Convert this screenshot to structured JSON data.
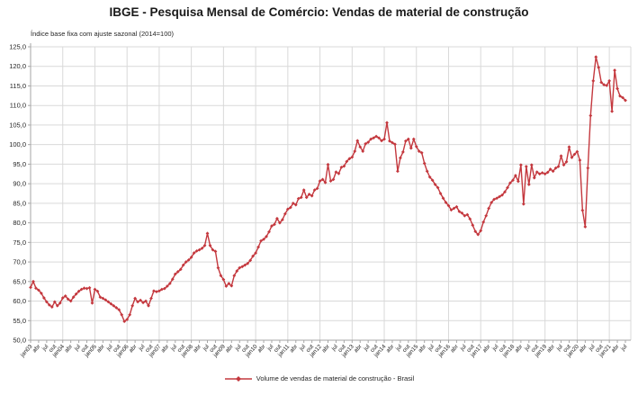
{
  "header": {
    "title": "IBGE - Pesquisa Mensal de Comércio: Vendas de material de construção"
  },
  "chart_data": {
    "type": "line",
    "title": "IBGE - Pesquisa Mensal de Comércio: Vendas de material de construção",
    "subtitle": "Índice base fixa com ajuste sazonal (2014=100)",
    "xlabel": "",
    "ylabel": "",
    "x_start": "jan/2003",
    "x_end": "jul/2021",
    "frequency": "monthly",
    "ylim": [
      50,
      125
    ],
    "y_step": 5,
    "grid": {
      "horizontal": true,
      "vertical_every_months": 12,
      "x_tick_every_months": 3
    },
    "legend_position": "bottom-center",
    "colors": {
      "series": "#c4383e",
      "gridline": "#d9d9d9",
      "axis": "#a6a6a6",
      "text": "#262626"
    },
    "y_tick_labels": [
      "125,0",
      "120,0",
      "115,0",
      "110,0",
      "105,0",
      "100,0",
      "95,0",
      "90,0",
      "85,0",
      "80,0",
      "75,0",
      "70,0",
      "65,0",
      "60,0",
      "55,0",
      "50,0"
    ],
    "x_tick_labels": [
      "jan03",
      "abr",
      "jul",
      "out",
      "jan04",
      "abr",
      "jul",
      "out",
      "jan05",
      "abr",
      "jul",
      "out",
      "jan06",
      "abr",
      "jul",
      "out",
      "jan07",
      "abr",
      "jul",
      "out",
      "jan08",
      "abr",
      "jul",
      "out",
      "jan09",
      "abr",
      "jul",
      "out",
      "jan10",
      "abr",
      "jul",
      "out",
      "jan11",
      "abr",
      "jul",
      "out",
      "jan12",
      "abr",
      "jul",
      "out",
      "jan13",
      "abr",
      "jul",
      "out",
      "jan14",
      "abr",
      "jul",
      "out",
      "jan15",
      "abr",
      "jul",
      "out",
      "jan16",
      "abr",
      "jul",
      "out",
      "jan17",
      "abr",
      "jul",
      "out",
      "jan18",
      "abr",
      "jul",
      "out",
      "jan19",
      "abr",
      "jul",
      "out",
      "jan20",
      "abr",
      "jul",
      "out",
      "jan21",
      "abr",
      "jul"
    ],
    "series": [
      {
        "name": "Volume de vendas de material de construção - Brasil",
        "color": "#c4383e",
        "marker": "diamond",
        "values": [
          63.5,
          65.0,
          63.3,
          62.8,
          62.0,
          60.8,
          59.8,
          59.0,
          58.5,
          59.8,
          58.8,
          59.5,
          60.8,
          61.3,
          60.5,
          60.0,
          61.0,
          61.8,
          62.5,
          63.0,
          63.3,
          63.2,
          63.4,
          59.5,
          63.0,
          62.5,
          61.0,
          60.7,
          60.3,
          59.8,
          59.3,
          58.8,
          58.3,
          57.8,
          56.5,
          54.8,
          55.3,
          56.5,
          58.8,
          60.7,
          59.8,
          60.2,
          59.6,
          60.0,
          58.8,
          60.7,
          62.6,
          62.4,
          62.6,
          63.0,
          63.2,
          63.8,
          64.5,
          65.6,
          66.9,
          67.5,
          68.1,
          69.2,
          70.0,
          70.5,
          71.2,
          72.3,
          72.8,
          73.1,
          73.5,
          74.2,
          77.3,
          74.2,
          73.1,
          72.7,
          68.5,
          66.5,
          65.5,
          63.8,
          64.5,
          63.9,
          66.5,
          67.7,
          68.5,
          68.8,
          69.2,
          69.6,
          70.4,
          71.5,
          72.3,
          73.8,
          75.4,
          75.8,
          76.5,
          77.7,
          79.2,
          79.6,
          81.1,
          80.0,
          80.8,
          82.3,
          83.5,
          83.9,
          85.0,
          84.6,
          86.2,
          86.5,
          88.4,
          86.5,
          87.3,
          86.9,
          88.4,
          88.8,
          90.7,
          91.1,
          90.3,
          94.9,
          90.7,
          91.1,
          93.0,
          92.6,
          94.2,
          94.5,
          95.7,
          96.4,
          96.8,
          98.3,
          101.0,
          99.4,
          98.3,
          100.2,
          100.6,
          101.4,
          101.7,
          102.1,
          101.7,
          101.0,
          101.4,
          105.6,
          100.9,
          100.5,
          100.1,
          93.2,
          96.6,
          98.1,
          100.9,
          101.4,
          99.1,
          101.4,
          99.5,
          98.3,
          97.9,
          95.2,
          93.2,
          91.7,
          90.9,
          89.8,
          89.0,
          87.5,
          86.3,
          85.2,
          84.4,
          83.3,
          83.7,
          84.1,
          82.9,
          82.5,
          81.8,
          82.1,
          81.0,
          79.4,
          77.8,
          77.0,
          78.0,
          80.2,
          81.8,
          83.7,
          85.2,
          86.0,
          86.3,
          86.7,
          87.1,
          87.9,
          89.0,
          90.2,
          90.9,
          92.1,
          90.6,
          94.8,
          84.8,
          94.4,
          89.8,
          94.8,
          91.5,
          93.0,
          92.5,
          92.8,
          92.5,
          92.9,
          93.7,
          93.2,
          94.0,
          94.4,
          97.1,
          94.8,
          95.6,
          99.4,
          96.7,
          97.5,
          98.2,
          96.0,
          83.2,
          79.0,
          94.0,
          107.4,
          116.3,
          122.4,
          119.7,
          115.9,
          115.3,
          115.1,
          116.3,
          108.5,
          119.0,
          114.3,
          112.4,
          112.0,
          111.3
        ]
      }
    ]
  },
  "legend": {
    "label": "Volume de vendas de material de construção - Brasil"
  }
}
